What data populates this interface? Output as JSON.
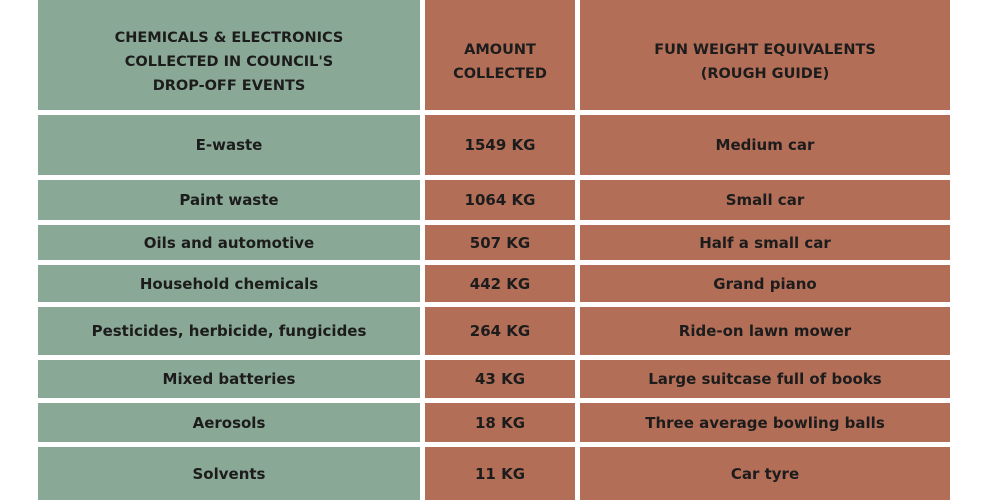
{
  "table": {
    "header": [
      "CHEMICALS & ELECTRONICS COLLECTED IN COUNCIL'S DROP-OFF EVENTS",
      "AMOUNT COLLECTED",
      "FUN WEIGHT EQUIVALENTS (ROUGH GUIDE)"
    ],
    "rows": [
      [
        "E-waste",
        "1549 KG",
        "Medium car"
      ],
      [
        "Paint waste",
        "1064 KG",
        "Small car"
      ],
      [
        "Oils and automotive",
        "507 KG",
        "Half a small car"
      ],
      [
        "Household chemicals",
        "442 KG",
        "Grand piano"
      ],
      [
        "Pesticides, herbicide, fungicides",
        "264 KG",
        "Ride-on lawn mower"
      ],
      [
        "Mixed batteries",
        "43 KG",
        "Large suitcase full of books"
      ],
      [
        "Aerosols",
        "18 KG",
        "Three average bowling balls"
      ],
      [
        "Solvents",
        "11 KG",
        "Car tyre"
      ]
    ]
  }
}
